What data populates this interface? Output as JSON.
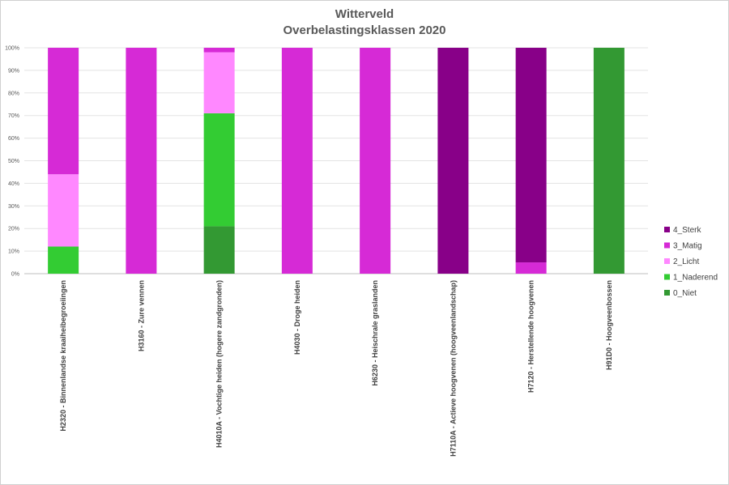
{
  "chart_data": {
    "type": "bar",
    "stacked": true,
    "title": "Witterveld",
    "subtitle": "Overbelastingsklassen 2020",
    "ylim": [
      0,
      100
    ],
    "y_ticks": [
      "0%",
      "10%",
      "20%",
      "30%",
      "40%",
      "50%",
      "60%",
      "70%",
      "80%",
      "90%",
      "100%"
    ],
    "grid": true,
    "legend_position": "right",
    "categories": [
      "H2320 - Binnenlandse kraaiheibegroeiingen",
      "H3160 - Zure vennen",
      "H4010A - Vochtige heiden (hogere zandgronden)",
      "H4030 - Droge heiden",
      "H6230 - Heischrale graslanden",
      "H7110A - Actieve hoogvenen (hoogveenlandschap)",
      "H7120 - Herstellende hoogvenen",
      "H91D0 - Hoogveenbossen"
    ],
    "series": [
      {
        "name": "0_Niet",
        "color": "#339933",
        "values": [
          0,
          0,
          21,
          0,
          0,
          0,
          0,
          100
        ]
      },
      {
        "name": "1_Naderend",
        "color": "#33cc33",
        "values": [
          12,
          0,
          50,
          0,
          0,
          0,
          0,
          0
        ]
      },
      {
        "name": "2_Licht",
        "color": "#ff88ff",
        "values": [
          32,
          0,
          27,
          0,
          0,
          0,
          0,
          0
        ]
      },
      {
        "name": "3_Matig",
        "color": "#d62ad6",
        "values": [
          56,
          100,
          2,
          100,
          100,
          0,
          5,
          0
        ]
      },
      {
        "name": "4_Sterk",
        "color": "#880088",
        "values": [
          0,
          0,
          0,
          0,
          0,
          100,
          95,
          0
        ]
      }
    ]
  }
}
